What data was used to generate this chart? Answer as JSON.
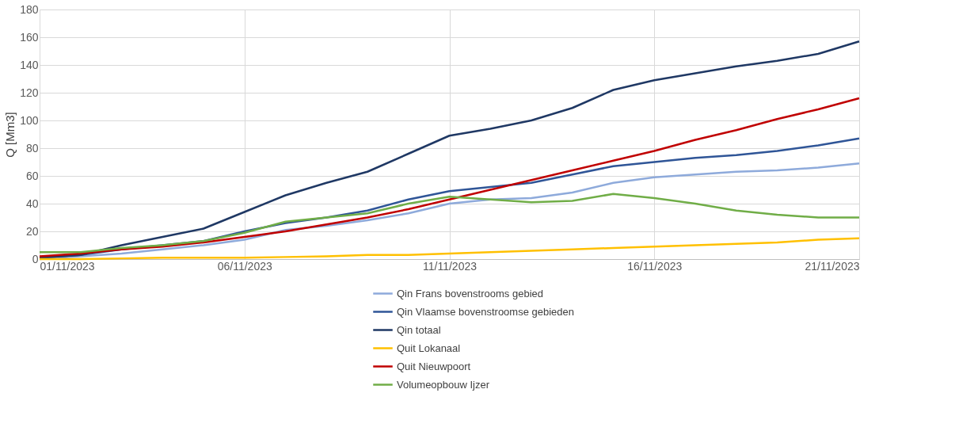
{
  "chart_data": {
    "type": "line",
    "ylabel": "Q [Mm3]",
    "x": [
      "2023-11-01",
      "2023-11-02",
      "2023-11-03",
      "2023-11-04",
      "2023-11-05",
      "2023-11-06",
      "2023-11-07",
      "2023-11-08",
      "2023-11-09",
      "2023-11-10",
      "2023-11-11",
      "2023-11-12",
      "2023-11-13",
      "2023-11-14",
      "2023-11-15",
      "2023-11-16",
      "2023-11-17",
      "2023-11-18",
      "2023-11-19",
      "2023-11-20",
      "2023-11-21"
    ],
    "series": [
      {
        "name": "Qin Frans bovenstrooms gebied",
        "color": "#8eaadb",
        "values": [
          0,
          2,
          4,
          7,
          10,
          14,
          21,
          24,
          28,
          33,
          40,
          43,
          44,
          48,
          55,
          59,
          61,
          63,
          64,
          66,
          69
        ]
      },
      {
        "name": "Qin Vlaamse bovenstroomse gebieden",
        "color": "#2f5597",
        "values": [
          1,
          3,
          7,
          10,
          13,
          20,
          26,
          30,
          35,
          43,
          49,
          52,
          55,
          61,
          67,
          70,
          73,
          75,
          78,
          82,
          87
        ]
      },
      {
        "name": "Qin totaal",
        "color": "#1f3864",
        "values": [
          1,
          3,
          10,
          16,
          22,
          34,
          46,
          55,
          63,
          76,
          89,
          94,
          100,
          109,
          122,
          129,
          134,
          139,
          143,
          148,
          157
        ]
      },
      {
        "name": "Quit Lokanaal",
        "color": "#ffc000",
        "values": [
          0,
          0,
          0.5,
          1,
          1,
          1,
          1.5,
          2,
          3,
          3,
          4,
          5,
          6,
          7,
          8,
          9,
          10,
          11,
          12,
          14,
          15
        ]
      },
      {
        "name": "Quit Nieuwpoort",
        "color": "#c00000",
        "values": [
          2,
          4,
          7,
          9,
          12,
          16,
          20,
          25,
          30,
          36,
          43,
          50,
          57,
          64,
          71,
          78,
          86,
          93,
          101,
          108,
          116
        ]
      },
      {
        "name": "Volumeopbouw Ijzer",
        "color": "#70ad47",
        "values": [
          5,
          5,
          8,
          10,
          13,
          19,
          27,
          30,
          33,
          40,
          45,
          43,
          41,
          42,
          47,
          44,
          40,
          35,
          32,
          30,
          30
        ]
      }
    ],
    "xlim": [
      "2023-11-01",
      "2023-11-21"
    ],
    "xticks": [
      {
        "value": "2023-11-01",
        "label": "01/11/2023"
      },
      {
        "value": "2023-11-06",
        "label": "06/11/2023"
      },
      {
        "value": "2023-11-11",
        "label": "11/11/2023"
      },
      {
        "value": "2023-11-16",
        "label": "16/11/2023"
      },
      {
        "value": "2023-11-21",
        "label": "21/11/2023"
      }
    ],
    "ylim": [
      0,
      180
    ],
    "yticks": [
      0,
      20,
      40,
      60,
      80,
      100,
      120,
      140,
      160,
      180
    ],
    "grid": true,
    "legend": "bottom",
    "marker": "none",
    "line_style": "solid"
  }
}
